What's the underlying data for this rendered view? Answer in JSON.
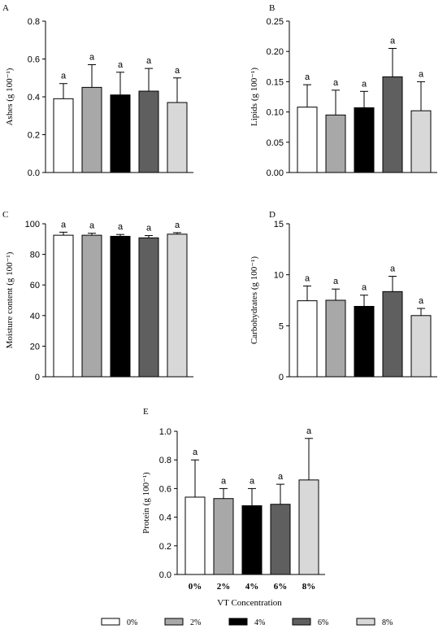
{
  "colors": {
    "bar_fills": [
      "#ffffff",
      "#a8a8a8",
      "#000000",
      "#5f5f5f",
      "#d8d8d8"
    ],
    "stroke": "#000000"
  },
  "x_title": "VT Concentration",
  "legend": [
    "0%",
    "2%",
    "4%",
    "6%",
    "8%"
  ],
  "chart_data": [
    {
      "type": "bar",
      "panel": "A",
      "ylabel": "Ashes (g 100⁻¹)",
      "ylim": [
        0,
        0.8
      ],
      "ticks": [
        "0.0",
        "0.2",
        "0.4",
        "0.6",
        "0.8"
      ],
      "tick_values": [
        0,
        0.2,
        0.4,
        0.6,
        0.8
      ],
      "categories": [
        "0%",
        "2%",
        "4%",
        "6%",
        "8%"
      ],
      "values": [
        0.39,
        0.45,
        0.41,
        0.43,
        0.37
      ],
      "errors": [
        0.08,
        0.12,
        0.12,
        0.12,
        0.13
      ],
      "letters": [
        "a",
        "a",
        "a",
        "a",
        "a"
      ],
      "show_category_labels": false
    },
    {
      "type": "bar",
      "panel": "B",
      "ylabel": "Lipids (g 100⁻¹)",
      "ylim": [
        0,
        0.25
      ],
      "ticks": [
        "0.00",
        "0.05",
        "0.10",
        "0.15",
        "0.20",
        "0.25"
      ],
      "tick_values": [
        0,
        0.05,
        0.1,
        0.15,
        0.2,
        0.25
      ],
      "categories": [
        "0%",
        "2%",
        "4%",
        "6%",
        "8%"
      ],
      "values": [
        0.108,
        0.095,
        0.107,
        0.158,
        0.102
      ],
      "errors": [
        0.037,
        0.041,
        0.027,
        0.047,
        0.048
      ],
      "letters": [
        "a",
        "a",
        "a",
        "a",
        "a"
      ],
      "show_category_labels": false
    },
    {
      "type": "bar",
      "panel": "C",
      "ylabel": "Moisture content (g 100⁻¹)",
      "ylim": [
        0,
        100
      ],
      "ticks": [
        "0",
        "20",
        "40",
        "60",
        "80",
        "100"
      ],
      "tick_values": [
        0,
        20,
        40,
        60,
        80,
        100
      ],
      "categories": [
        "0%",
        "2%",
        "4%",
        "6%",
        "8%"
      ],
      "values": [
        92.5,
        92.5,
        91.8,
        90.8,
        93.2
      ],
      "errors": [
        2.0,
        1.3,
        1.2,
        1.5,
        1.0
      ],
      "letters": [
        "a",
        "a",
        "a",
        "a",
        "a"
      ],
      "show_category_labels": false
    },
    {
      "type": "bar",
      "panel": "D",
      "ylabel": "Carbohydrates (g 100⁻¹)",
      "ylim": [
        0,
        15
      ],
      "ticks": [
        "0",
        "5",
        "10",
        "15"
      ],
      "tick_values": [
        0,
        5,
        10,
        15
      ],
      "categories": [
        "0%",
        "2%",
        "4%",
        "6%",
        "8%"
      ],
      "values": [
        7.45,
        7.5,
        6.9,
        8.35,
        6.0
      ],
      "errors": [
        1.45,
        1.1,
        1.1,
        1.5,
        0.7
      ],
      "letters": [
        "a",
        "a",
        "a",
        "a",
        "a"
      ],
      "show_category_labels": false
    },
    {
      "type": "bar",
      "panel": "E",
      "ylabel": "Protein (g 100⁻¹)",
      "ylim": [
        0,
        1.0
      ],
      "ticks": [
        "0.0",
        "0.2",
        "0.4",
        "0.6",
        "0.8",
        "1.0"
      ],
      "tick_values": [
        0,
        0.2,
        0.4,
        0.6,
        0.8,
        1.0
      ],
      "categories": [
        "0%",
        "2%",
        "4%",
        "6%",
        "8%"
      ],
      "values": [
        0.54,
        0.53,
        0.48,
        0.49,
        0.66
      ],
      "errors": [
        0.26,
        0.07,
        0.12,
        0.14,
        0.29
      ],
      "letters": [
        "a",
        "a",
        "a",
        "a",
        "a"
      ],
      "show_category_labels": true
    }
  ]
}
